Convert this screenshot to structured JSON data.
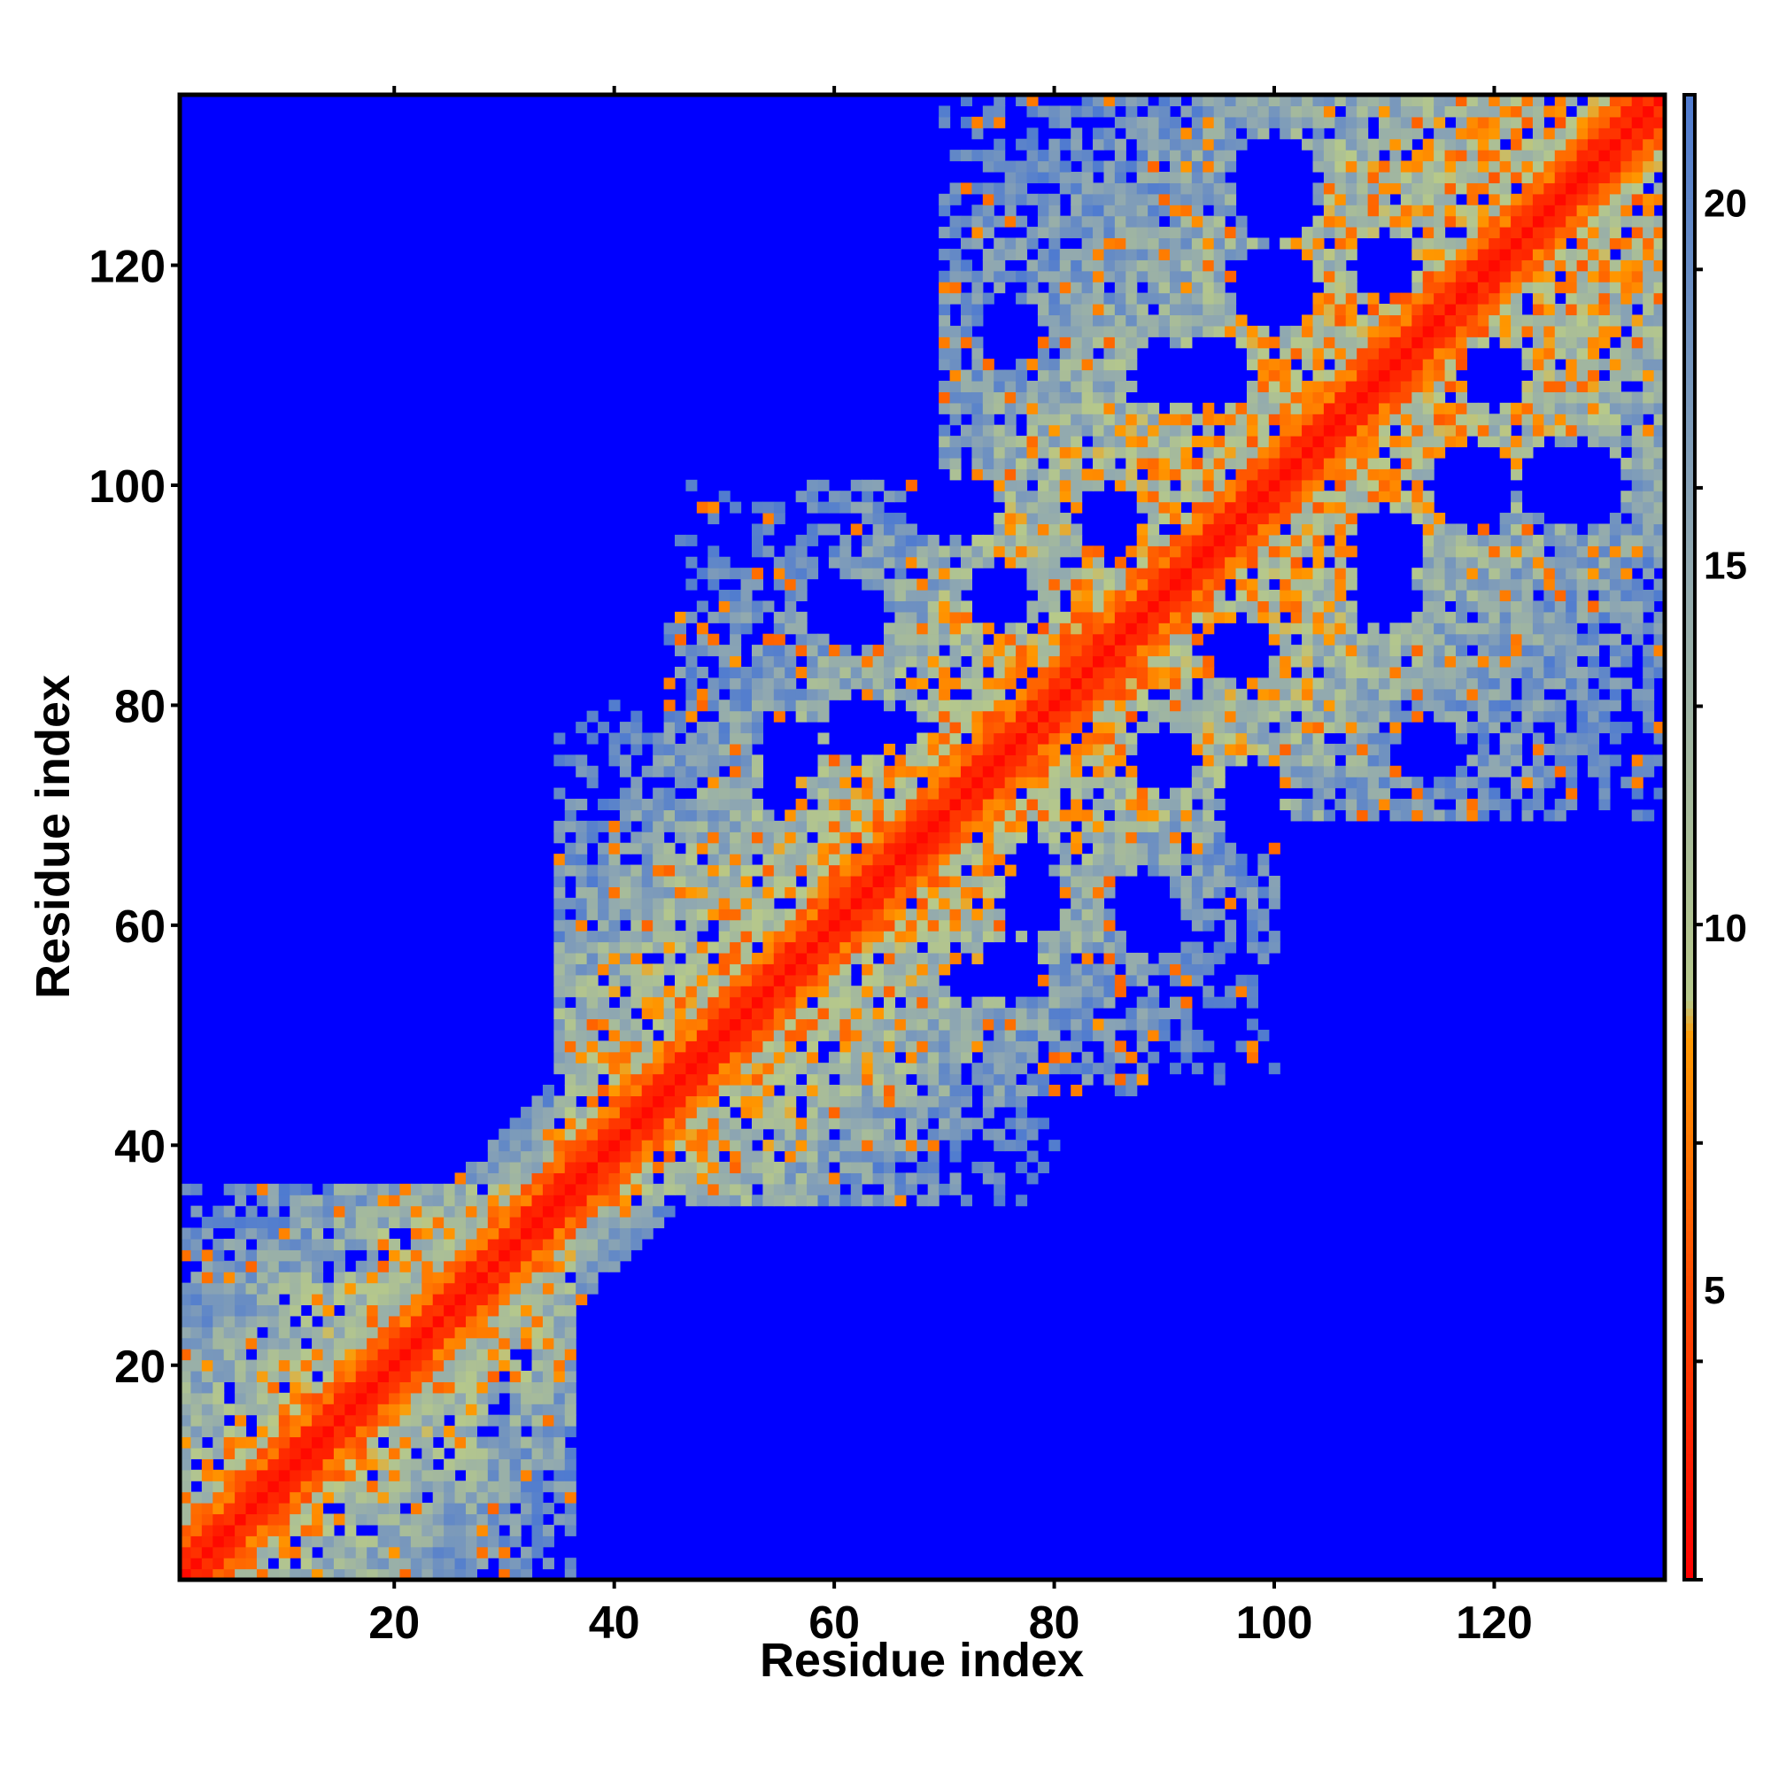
{
  "chart_data": {
    "type": "heatmap",
    "title": "",
    "xlabel": "Residue index",
    "ylabel": "Residue index",
    "n_residues": 135,
    "xlim": [
      1,
      135
    ],
    "ylim": [
      1,
      135
    ],
    "x_ticks": [
      20,
      40,
      60,
      80,
      100,
      120
    ],
    "y_ticks": [
      20,
      40,
      60,
      80,
      100,
      120
    ],
    "colorbar": {
      "ticks": [
        5,
        10,
        15,
        20
      ],
      "range": [
        1,
        21.5
      ],
      "cutoff": 21.5,
      "stops": [
        {
          "value": 1,
          "color": "#ff0000"
        },
        {
          "value": 5,
          "color": "#ff4a00"
        },
        {
          "value": 8.5,
          "color": "#ff9900"
        },
        {
          "value": 9,
          "color": "#b7c98a"
        },
        {
          "value": 15,
          "color": "#91a9b0"
        },
        {
          "value": 21.5,
          "color": "#4f7bd0"
        }
      ],
      "background_color": "#0000ff"
    },
    "contact_domains": [
      {
        "i": [
          1,
          36
        ],
        "j": [
          1,
          36
        ],
        "strength": 0.9
      },
      {
        "i": [
          35,
          80
        ],
        "j": [
          35,
          80
        ],
        "strength": 0.8
      },
      {
        "i": [
          45,
          100
        ],
        "j": [
          45,
          100
        ],
        "strength": 0.75
      },
      {
        "i": [
          70,
          135
        ],
        "j": [
          70,
          135
        ],
        "strength": 0.85
      },
      {
        "i": [
          40,
          60
        ],
        "j": [
          100,
          135
        ],
        "strength": 0.35
      },
      {
        "i": [
          90,
          135
        ],
        "j": [
          50,
          80
        ],
        "strength": 0.45
      }
    ],
    "holes": [
      {
        "i": 100,
        "j": 128,
        "r": 4
      },
      {
        "i": 110,
        "j": 120,
        "r": 3
      },
      {
        "i": 118,
        "j": 100,
        "r": 4
      },
      {
        "i": 125,
        "j": 100,
        "r": 3
      },
      {
        "i": 110,
        "j": 93,
        "r": 3
      },
      {
        "i": 90,
        "j": 110,
        "r": 3
      },
      {
        "i": 95,
        "j": 110,
        "r": 3
      },
      {
        "i": 76,
        "j": 114,
        "r": 3
      },
      {
        "i": 60,
        "j": 122,
        "r": 3
      },
      {
        "i": 55,
        "j": 112,
        "r": 3
      },
      {
        "i": 70,
        "j": 98,
        "r": 3
      },
      {
        "i": 85,
        "j": 97,
        "r": 3
      },
      {
        "i": 60,
        "j": 89,
        "r": 3
      },
      {
        "i": 56,
        "j": 76,
        "r": 3
      },
      {
        "i": 66,
        "j": 78,
        "r": 2
      },
      {
        "i": 90,
        "j": 75,
        "r": 3
      },
      {
        "i": 98,
        "j": 72,
        "r": 3
      },
      {
        "i": 78,
        "j": 62,
        "r": 3
      },
      {
        "i": 88,
        "j": 62,
        "r": 3
      },
      {
        "i": 110,
        "j": 62,
        "r": 3
      },
      {
        "i": 72,
        "j": 55,
        "r": 2
      }
    ]
  }
}
